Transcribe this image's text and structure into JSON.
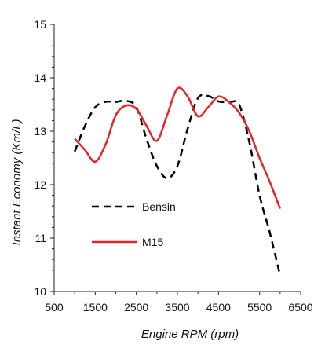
{
  "chart_data": {
    "type": "line",
    "title": "",
    "xlabel": "Engine RPM (rpm)",
    "ylabel": "Instant Economy (Km/L)",
    "xlim": [
      500,
      6500
    ],
    "ylim": [
      10,
      15
    ],
    "xticks": [
      500,
      1500,
      2500,
      3500,
      4500,
      5500,
      6500
    ],
    "yticks": [
      10,
      11,
      12,
      13,
      14,
      15
    ],
    "grid": false,
    "legend_position": "inside-left-middle",
    "series": [
      {
        "name": "Bensin",
        "color": "#000000",
        "style": "dashed",
        "points": [
          [
            1000,
            12.62
          ],
          [
            1250,
            13.1
          ],
          [
            1500,
            13.45
          ],
          [
            1750,
            13.55
          ],
          [
            2000,
            13.55
          ],
          [
            2250,
            13.57
          ],
          [
            2500,
            13.45
          ],
          [
            2750,
            12.85
          ],
          [
            3000,
            12.35
          ],
          [
            3250,
            12.12
          ],
          [
            3500,
            12.35
          ],
          [
            3750,
            13.05
          ],
          [
            4000,
            13.62
          ],
          [
            4250,
            13.66
          ],
          [
            4500,
            13.56
          ],
          [
            4750,
            13.54
          ],
          [
            5000,
            13.5
          ],
          [
            5250,
            12.8
          ],
          [
            5500,
            11.8
          ],
          [
            5750,
            11.1
          ],
          [
            6000,
            10.3
          ]
        ]
      },
      {
        "name": "M15",
        "color": "#e8232a",
        "style": "solid",
        "points": [
          [
            1000,
            12.86
          ],
          [
            1250,
            12.65
          ],
          [
            1500,
            12.43
          ],
          [
            1750,
            12.75
          ],
          [
            2000,
            13.3
          ],
          [
            2250,
            13.48
          ],
          [
            2500,
            13.42
          ],
          [
            2750,
            13.1
          ],
          [
            3000,
            12.82
          ],
          [
            3250,
            13.3
          ],
          [
            3500,
            13.8
          ],
          [
            3750,
            13.65
          ],
          [
            4000,
            13.28
          ],
          [
            4250,
            13.45
          ],
          [
            4500,
            13.65
          ],
          [
            4750,
            13.55
          ],
          [
            5000,
            13.35
          ],
          [
            5250,
            13.0
          ],
          [
            5500,
            12.5
          ],
          [
            5750,
            12.05
          ],
          [
            6000,
            11.55
          ]
        ]
      }
    ]
  }
}
